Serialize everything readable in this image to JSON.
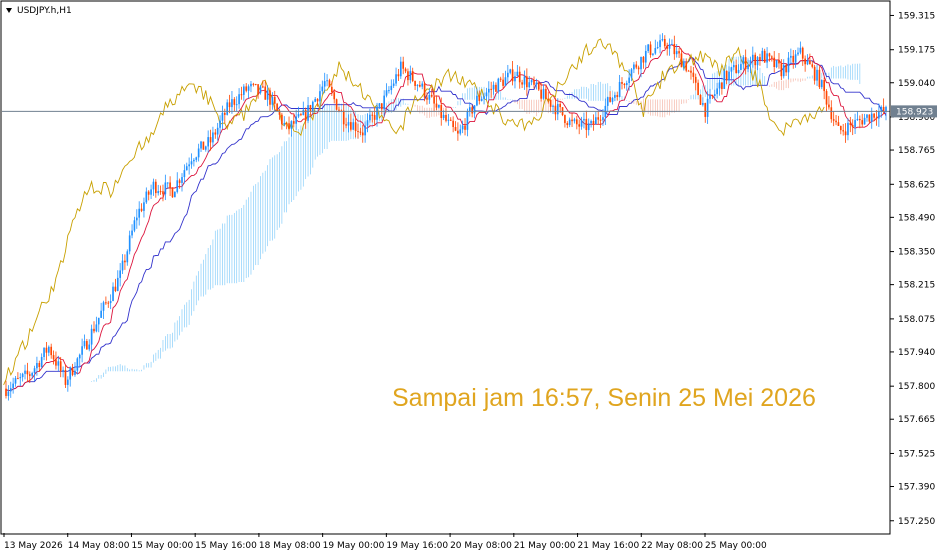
{
  "chart_data": {
    "type": "candlestick",
    "symbol_label": "USDJPY.h,H1",
    "annotation": "Sampai jam 16:57, Senin 25 Mei 2026",
    "current_price": 158.923,
    "current_price_label": "158.923",
    "ylim": [
      157.2,
      159.37
    ],
    "y_ticks": [
      "159.315",
      "159.175",
      "159.040",
      "158.900",
      "158.765",
      "158.625",
      "158.490",
      "158.350",
      "158.215",
      "158.075",
      "157.940",
      "157.800",
      "157.665",
      "157.525",
      "157.390",
      "157.250"
    ],
    "x_ticks": [
      "13 May 2026",
      "14 May 08:00",
      "15 May 00:00",
      "15 May 16:00",
      "18 May 08:00",
      "19 May 00:00",
      "19 May 16:00",
      "20 May 08:00",
      "21 May 00:00",
      "21 May 16:00",
      "22 May 08:00",
      "25 May 00:00"
    ],
    "grid": false,
    "colors": {
      "bull": "#1e90ff",
      "bear": "#ff4500",
      "tenkan": "#dc143c",
      "kijun": "#3333cc",
      "chikou": "#c8a000",
      "kumo_up": "#87cefa",
      "kumo_down": "#f4b6a8",
      "price_line": "#708090",
      "annotation": "#e0a51f",
      "badge": "#708090"
    },
    "series": [
      {
        "name": "close_path",
        "x_index": [
          0,
          10,
          18,
          25,
          32,
          40,
          48,
          55,
          62,
          70,
          78,
          86,
          94,
          102,
          110,
          118,
          126,
          134,
          142,
          150,
          158,
          166,
          174,
          182,
          190,
          198,
          206,
          214,
          222,
          230,
          238,
          246,
          254,
          262,
          270,
          278,
          286,
          294,
          302,
          310,
          318,
          326,
          334,
          342,
          350,
          358,
          366,
          374
        ],
        "values": [
          157.79,
          157.85,
          157.96,
          157.82,
          157.94,
          158.1,
          158.25,
          158.5,
          158.62,
          158.6,
          158.74,
          158.8,
          158.95,
          159.02,
          158.99,
          158.85,
          158.91,
          159.04,
          158.9,
          158.84,
          158.95,
          159.1,
          159.03,
          158.92,
          158.82,
          158.97,
          159.03,
          159.08,
          159.02,
          158.95,
          158.87,
          158.86,
          158.97,
          159.08,
          159.17,
          159.2,
          159.11,
          158.93,
          159.06,
          159.12,
          159.15,
          159.09,
          159.16,
          159.05,
          158.84,
          158.88,
          158.92,
          158.92
        ]
      }
    ]
  }
}
